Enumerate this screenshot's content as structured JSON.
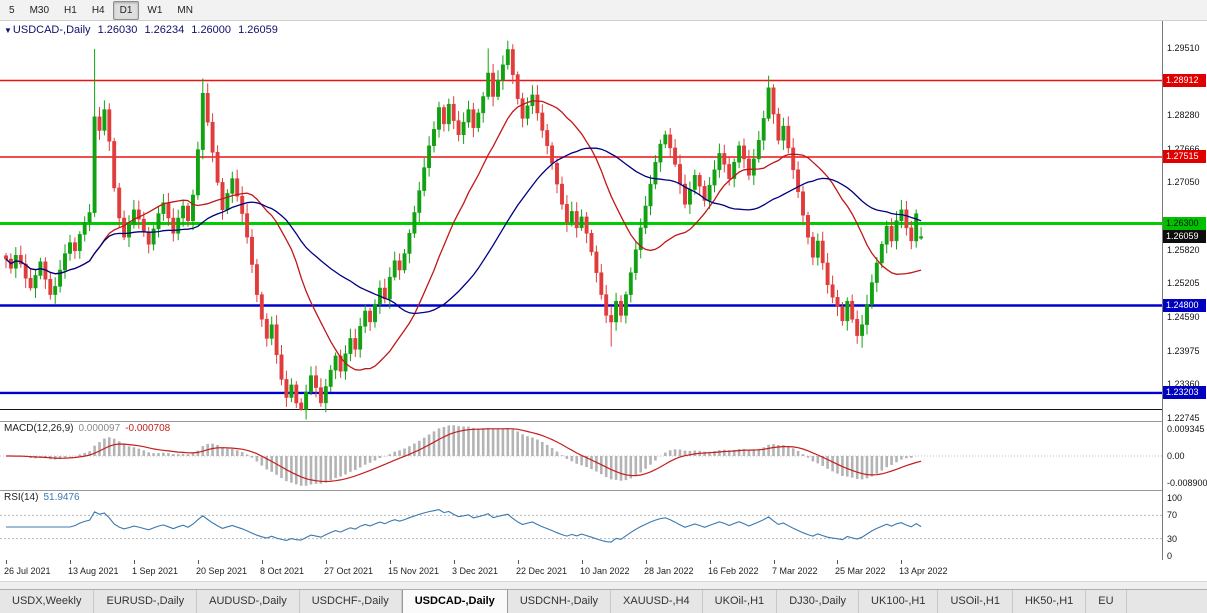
{
  "toolbar": {
    "timeframes": [
      {
        "label": "5",
        "active": false
      },
      {
        "label": "M30",
        "active": false
      },
      {
        "label": "H1",
        "active": false
      },
      {
        "label": "H4",
        "active": false
      },
      {
        "label": "D1",
        "active": true
      },
      {
        "label": "W1",
        "active": false
      },
      {
        "label": "MN",
        "active": false
      }
    ]
  },
  "chart": {
    "symbol_header": {
      "arrow": "▼",
      "title": "USDCAD-,Daily",
      "open": "1.26030",
      "high": "1.26234",
      "low": "1.26000",
      "close": "1.26059"
    }
  },
  "chart_data": {
    "type": "candlestick",
    "symbol": "USDCAD-",
    "timeframe": "Daily",
    "ylim": [
      1.2269,
      1.3
    ],
    "bars_per_tick": 13,
    "x_tick_labels": [
      "26 Jul 2021",
      "13 Aug 2021",
      "1 Sep 2021",
      "20 Sep 2021",
      "8 Oct 2021",
      "27 Oct 2021",
      "15 Nov 2021",
      "3 Dec 2021",
      "22 Dec 2021",
      "10 Jan 2022",
      "28 Jan 2022",
      "16 Feb 2022",
      "7 Mar 2022",
      "25 Mar 2022",
      "13 Apr 2022"
    ],
    "closes": [
      1.2565,
      1.2548,
      1.2572,
      1.2556,
      1.253,
      1.2512,
      1.2535,
      1.256,
      1.2528,
      1.25,
      1.2515,
      1.2545,
      1.2575,
      1.2595,
      1.258,
      1.261,
      1.2632,
      1.265,
      1.2825,
      1.28,
      1.2838,
      1.278,
      1.2695,
      1.264,
      1.2605,
      1.2628,
      1.2655,
      1.2638,
      1.2615,
      1.2592,
      1.262,
      1.2648,
      1.2668,
      1.264,
      1.2612,
      1.264,
      1.2662,
      1.2635,
      1.2682,
      1.2765,
      1.2868,
      1.2815,
      1.276,
      1.2705,
      1.2655,
      1.2685,
      1.2712,
      1.268,
      1.2648,
      1.2605,
      1.2555,
      1.25,
      1.2455,
      1.242,
      1.2445,
      1.239,
      1.2345,
      1.2312,
      1.2335,
      1.2302,
      1.229,
      1.2322,
      1.2352,
      1.233,
      1.2302,
      1.2332,
      1.2362,
      1.2388,
      1.236,
      1.2392,
      1.242,
      1.24,
      1.2442,
      1.247,
      1.245,
      1.2482,
      1.2512,
      1.2492,
      1.2532,
      1.2562,
      1.2545,
      1.2575,
      1.2612,
      1.265,
      1.269,
      1.2732,
      1.2772,
      1.2802,
      1.2842,
      1.2812,
      1.2848,
      1.2818,
      1.2792,
      1.2815,
      1.2838,
      1.2805,
      1.2832,
      1.2862,
      1.2905,
      1.2862,
      1.2892,
      1.292,
      1.2948,
      1.2902,
      1.2858,
      1.2822,
      1.2845,
      1.2865,
      1.2832,
      1.28,
      1.2772,
      1.274,
      1.2702,
      1.2665,
      1.2632,
      1.2652,
      1.2622,
      1.2642,
      1.2612,
      1.2578,
      1.254,
      1.25,
      1.2462,
      1.245,
      1.2488,
      1.2462,
      1.25,
      1.254,
      1.2582,
      1.2622,
      1.2662,
      1.2702,
      1.2742,
      1.2775,
      1.2792,
      1.2768,
      1.2738,
      1.2702,
      1.2665,
      1.2692,
      1.2718,
      1.2698,
      1.2672,
      1.27,
      1.2728,
      1.2758,
      1.2738,
      1.2712,
      1.2742,
      1.2772,
      1.2748,
      1.2718,
      1.2748,
      1.2782,
      1.2822,
      1.2878,
      1.283,
      1.2782,
      1.2808,
      1.2768,
      1.2728,
      1.2688,
      1.2645,
      1.2605,
      1.2568,
      1.2598,
      1.2558,
      1.2518,
      1.2495,
      1.2478,
      1.2452,
      1.2488,
      1.2455,
      1.2425,
      1.2445,
      1.2482,
      1.2522,
      1.2558,
      1.2592,
      1.2625,
      1.2598,
      1.2635,
      1.2655,
      1.2622,
      1.2598,
      1.2648,
      1.26059
    ],
    "ohlc_current": {
      "open": 1.2603,
      "high": 1.26234,
      "low": 1.26,
      "close": 1.26059
    },
    "wick_overrides": {
      "18": {
        "high": 1.2949,
        "low": 1.2642
      },
      "20": {
        "high": 1.2855
      },
      "40": {
        "high": 1.2895
      },
      "59": {
        "low": 1.2293
      },
      "60": {
        "low": 1.2288
      },
      "64": {
        "low": 1.2295
      },
      "98": {
        "high": 1.295
      },
      "102": {
        "high": 1.2964
      },
      "122": {
        "low": 1.2448
      },
      "123": {
        "low": 1.2405
      },
      "155": {
        "high": 1.29
      },
      "173": {
        "low": 1.241
      },
      "174": {
        "low": 1.2403
      }
    },
    "moving_averages": [
      {
        "name": "ma-fast",
        "period": 20,
        "color": "#c01818"
      },
      {
        "name": "ma-slow",
        "period": 40,
        "color": "#000080"
      }
    ],
    "horizontal_levels": [
      {
        "price": 1.28912,
        "color": "#ee1111",
        "width": 1.4
      },
      {
        "price": 1.27515,
        "color": "#ee1111",
        "width": 1.4
      },
      {
        "price": 1.263,
        "color": "#00cc00",
        "width": 3
      },
      {
        "price": 1.248,
        "color": "#0000cd",
        "width": 2.4
      },
      {
        "price": 1.23203,
        "color": "#0000cd",
        "width": 2.4
      },
      {
        "price": 1.229,
        "color": "#141414",
        "width": 1
      }
    ],
    "price_axis_labels": [
      "1.29510",
      "1.28280",
      "1.27666",
      "1.27050",
      "1.25820",
      "1.25205",
      "1.24590",
      "1.23975",
      "1.23360",
      "1.22745"
    ],
    "price_badges": [
      {
        "text": "1.28912",
        "color": "#e00000",
        "text_color": "#ffffff",
        "current": false
      },
      {
        "text": "1.27515",
        "color": "#e00000",
        "text_color": "#ffffff",
        "current": false
      },
      {
        "text": "1.26300",
        "color": "#00c000",
        "text_color": "#001a00",
        "current": false
      },
      {
        "text": "1.26059",
        "color": "#0d0d0d",
        "text_color": "#ffffff",
        "current": true
      },
      {
        "text": "1.24800",
        "color": "#0000c0",
        "text_color": "#ffffff",
        "current": false
      },
      {
        "text": "1.23203",
        "color": "#0000c0",
        "text_color": "#ffffff",
        "current": false
      }
    ]
  },
  "macd": {
    "label": "MACD(12,26,9)",
    "value_main": "0.000097",
    "value_signal": "-0.000708",
    "params": {
      "fast": 12,
      "slow": 26,
      "signal": 9
    },
    "axis_labels": {
      "top": "0.009345",
      "zero": "0.00",
      "bottom": "-0.008900"
    },
    "colors": {
      "histogram": "#b4b4b4",
      "signal": "#c41e1e"
    }
  },
  "rsi": {
    "label": "RSI(14)",
    "value": "51.9476",
    "period": 14,
    "color": "#3a78b0",
    "axis_levels": [
      100,
      70,
      30,
      0
    ],
    "dashed_levels": [
      70,
      30
    ]
  },
  "tabs": [
    {
      "label": "USDX,Weekly",
      "active": false
    },
    {
      "label": "EURUSD-,Daily",
      "active": false
    },
    {
      "label": "AUDUSD-,Daily",
      "active": false
    },
    {
      "label": "USDCHF-,Daily",
      "active": false
    },
    {
      "label": "USDCAD-,Daily",
      "active": true
    },
    {
      "label": "USDCNH-,Daily",
      "active": false
    },
    {
      "label": "XAUUSD-,H4",
      "active": false
    },
    {
      "label": "UKOil-,H1",
      "active": false
    },
    {
      "label": "DJ30-,Daily",
      "active": false
    },
    {
      "label": "UK100-,H1",
      "active": false
    },
    {
      "label": "USOil-,H1",
      "active": false
    },
    {
      "label": "HK50-,H1",
      "active": false
    },
    {
      "label": "EU",
      "active": false
    }
  ],
  "colors": {
    "bull": "#12a112",
    "bear": "#e03c3c"
  }
}
